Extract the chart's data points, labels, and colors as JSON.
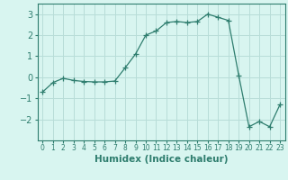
{
  "x": [
    0,
    1,
    2,
    3,
    4,
    5,
    6,
    7,
    8,
    9,
    10,
    11,
    12,
    13,
    14,
    15,
    16,
    17,
    18,
    19,
    20,
    21,
    22,
    23
  ],
  "y": [
    -0.7,
    -0.25,
    -0.05,
    -0.15,
    -0.2,
    -0.22,
    -0.22,
    -0.18,
    0.45,
    1.1,
    2.0,
    2.2,
    2.6,
    2.65,
    2.6,
    2.65,
    3.0,
    2.85,
    2.7,
    0.1,
    -2.35,
    -2.1,
    -2.35,
    -1.3
  ],
  "line_color": "#2e7d6e",
  "marker": "+",
  "marker_size": 4,
  "bg_color": "#d8f5f0",
  "grid_color": "#b8ddd8",
  "xlabel": "Humidex (Indice chaleur)",
  "xlim": [
    -0.5,
    23.5
  ],
  "ylim": [
    -3.0,
    3.5
  ],
  "yticks": [
    -2,
    -1,
    0,
    1,
    2,
    3
  ],
  "xtick_labels": [
    "0",
    "1",
    "2",
    "3",
    "4",
    "5",
    "6",
    "7",
    "8",
    "9",
    "10",
    "11",
    "12",
    "13",
    "14",
    "15",
    "16",
    "17",
    "18",
    "19",
    "20",
    "21",
    "22",
    "23"
  ],
  "spine_color": "#2e7d6e",
  "tick_color": "#2e7d6e",
  "label_color": "#2e7d6e",
  "xlabel_fontsize": 7.5,
  "ytick_fontsize": 7,
  "xtick_fontsize": 5.5
}
